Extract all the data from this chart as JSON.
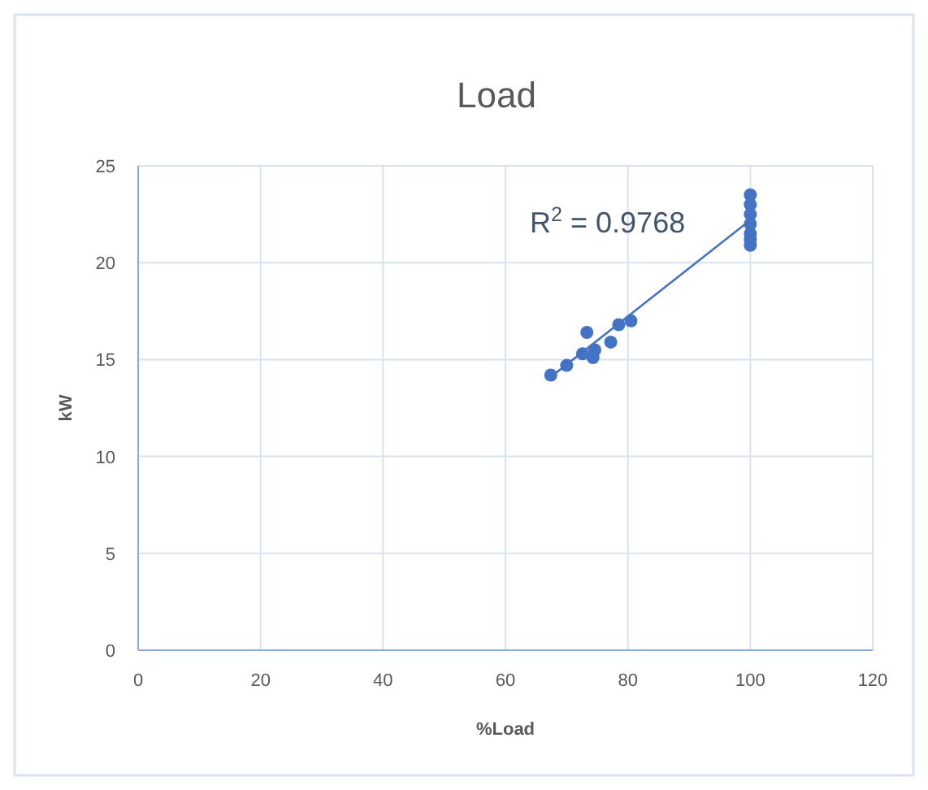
{
  "chart_data": {
    "type": "scatter",
    "title": "Load",
    "xlabel": "%Load",
    "ylabel": "kW",
    "xlim": [
      0,
      120
    ],
    "xticks": [
      0,
      20,
      40,
      60,
      80,
      100,
      120
    ],
    "ylim": [
      0,
      25
    ],
    "yticks": [
      0,
      5,
      10,
      15,
      20,
      25
    ],
    "grid": true,
    "annotations": [
      "R$^{2}$ = 0.9768"
    ],
    "series": [
      {
        "marker": "circle",
        "color": "#4472c4",
        "x": [
          67.4,
          70,
          72.6,
          73.3,
          74.3,
          74.6,
          77.2,
          78.5,
          80.5,
          100,
          100,
          100,
          100,
          100,
          100,
          100
        ],
        "values": [
          14.2,
          14.7,
          15.3,
          16.4,
          15.1,
          15.5,
          15.9,
          16.8,
          17.0,
          23.5,
          23.0,
          22.5,
          22.0,
          21.5,
          21.2,
          20.9
        ]
      },
      {
        "type": "line",
        "color": "#4472c4",
        "x": [
          67.4,
          100
        ],
        "values": [
          14.1,
          22.2
        ]
      }
    ]
  }
}
